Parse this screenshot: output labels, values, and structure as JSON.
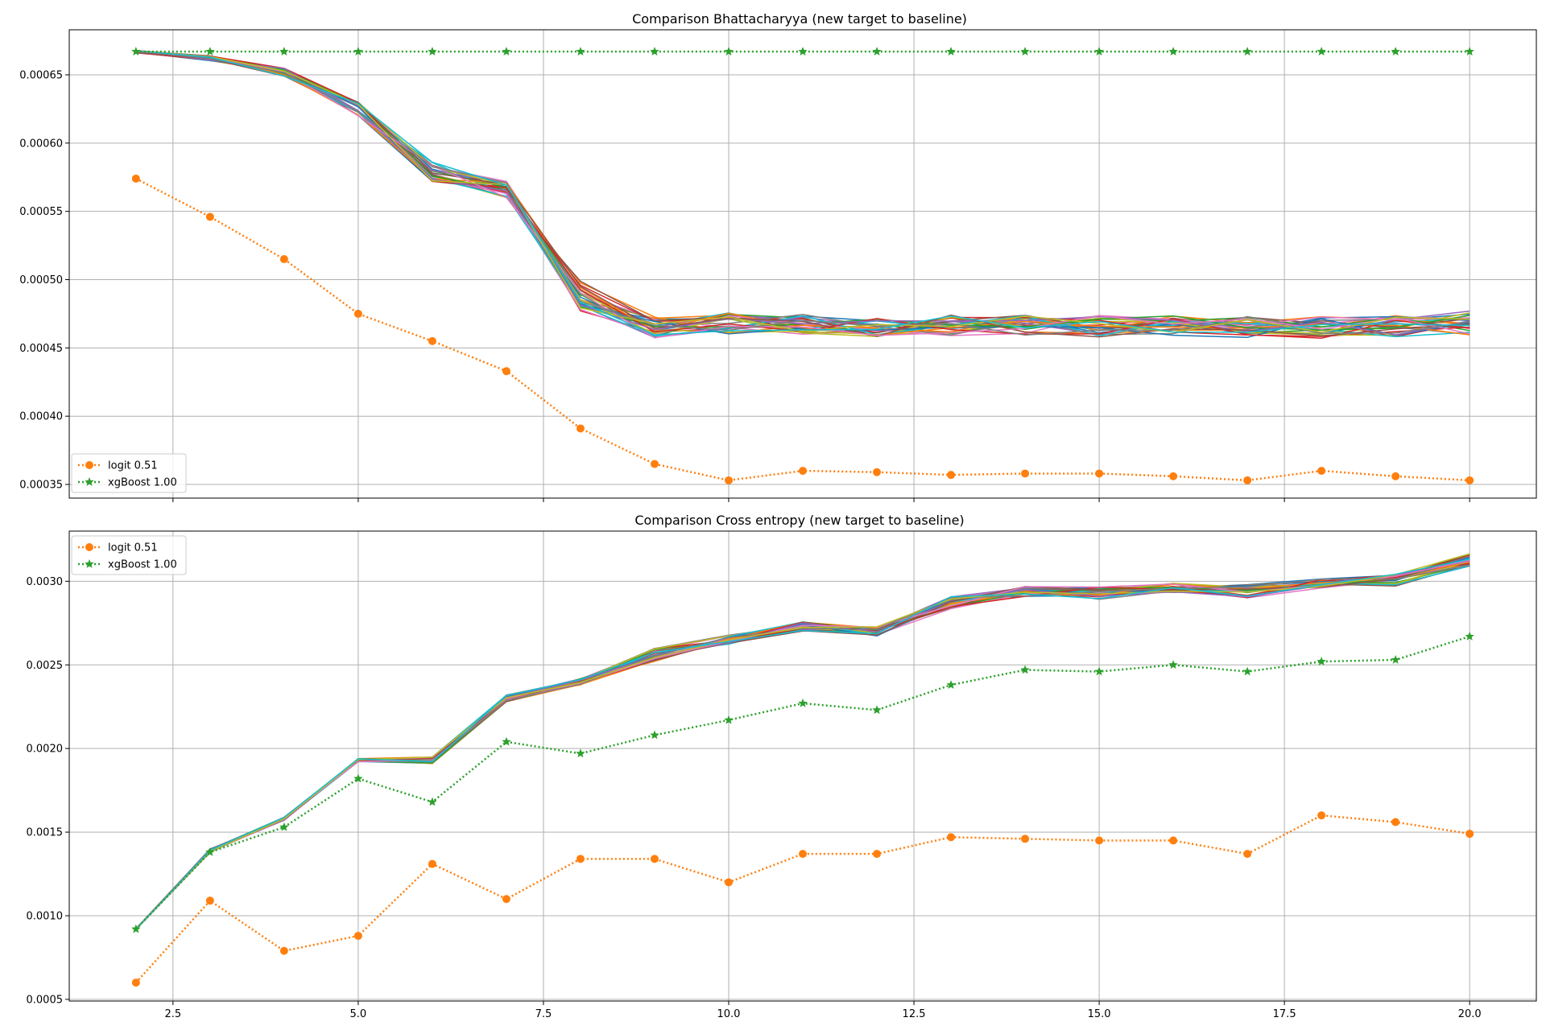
{
  "chart_data": [
    {
      "type": "line",
      "title": "Comparison Bhattacharyya (new target to baseline)",
      "xlabel": "",
      "ylabel": "",
      "xlim": [
        1.1,
        20.9
      ],
      "ylim": [
        0.00034,
        0.000683
      ],
      "grid": true,
      "legend_position": "lower-left",
      "x_ticks": [
        2.5,
        5.0,
        7.5,
        10.0,
        12.5,
        15.0,
        17.5,
        20.0
      ],
      "x_tick_labels": [
        "",
        "",
        "",
        "",
        "",
        "",
        "",
        ""
      ],
      "y_ticks": [
        0.00035,
        0.0004,
        0.00045,
        0.0005,
        0.00055,
        0.0006,
        0.00065
      ],
      "y_tick_labels": [
        "0.00035",
        "0.00040",
        "0.00045",
        "0.00050",
        "0.00055",
        "0.00060",
        "0.00065"
      ],
      "x": [
        2,
        3,
        4,
        5,
        6,
        7,
        8,
        9,
        10,
        11,
        12,
        13,
        14,
        15,
        16,
        17,
        18,
        19,
        20
      ],
      "series": [
        {
          "name": "logit 0.51",
          "color": "#ff7f0e",
          "style": "dotted",
          "marker": "circle",
          "values": [
            0.000574,
            0.000546,
            0.000515,
            0.000475,
            0.000455,
            0.000433,
            0.000391,
            0.000365,
            0.000353,
            0.00036,
            0.000359,
            0.000357,
            0.000358,
            0.000358,
            0.000356,
            0.000353,
            0.00036,
            0.000356,
            0.000353
          ]
        },
        {
          "name": "xgBoost 1.00",
          "color": "#2ca02c",
          "style": "dotted",
          "marker": "star",
          "values": [
            0.000667,
            0.000667,
            0.000667,
            0.000667,
            0.000667,
            0.000667,
            0.000667,
            0.000667,
            0.000667,
            0.000667,
            0.000667,
            0.000667,
            0.000667,
            0.000667,
            0.000667,
            0.000667,
            0.000667,
            0.000667,
            0.000667
          ]
        }
      ],
      "background_series": {
        "count": 30,
        "colors": [
          "#1f77b4",
          "#ff7f0e",
          "#2ca02c",
          "#d62728",
          "#9467bd",
          "#8c564b",
          "#e377c2",
          "#7f7f7f",
          "#bcbd22",
          "#17becf"
        ],
        "base": [
          0.000667,
          0.000662,
          0.000652,
          0.000625,
          0.000578,
          0.000566,
          0.000488,
          0.000465,
          0.000468,
          0.000468,
          0.000466,
          0.000467,
          0.000467,
          0.000466,
          0.000466,
          0.000465,
          0.000465,
          0.000466,
          0.000468
        ],
        "spread": [
          1e-06,
          2e-06,
          3e-06,
          5e-06,
          8e-06,
          6e-06,
          1.1e-05,
          8e-06,
          8e-06,
          8e-06,
          8e-06,
          8e-06,
          8e-06,
          8e-06,
          8e-06,
          8e-06,
          8e-06,
          8e-06,
          9e-06
        ]
      }
    },
    {
      "type": "line",
      "title": "Comparison Cross entropy (new target to baseline)",
      "xlabel": "",
      "ylabel": "",
      "xlim": [
        1.1,
        20.9
      ],
      "ylim": [
        0.00049,
        0.0033
      ],
      "grid": true,
      "legend_position": "top-left",
      "x_ticks": [
        2.5,
        5.0,
        7.5,
        10.0,
        12.5,
        15.0,
        17.5,
        20.0
      ],
      "x_tick_labels": [
        "2.5",
        "5.0",
        "7.5",
        "10.0",
        "12.5",
        "15.0",
        "17.5",
        "20.0"
      ],
      "y_ticks": [
        0.0005,
        0.001,
        0.0015,
        0.002,
        0.0025,
        0.003
      ],
      "y_tick_labels": [
        "0.0005",
        "0.0010",
        "0.0015",
        "0.0020",
        "0.0025",
        "0.0030"
      ],
      "x": [
        2,
        3,
        4,
        5,
        6,
        7,
        8,
        9,
        10,
        11,
        12,
        13,
        14,
        15,
        16,
        17,
        18,
        19,
        20
      ],
      "series": [
        {
          "name": "logit 0.51",
          "color": "#ff7f0e",
          "style": "dotted",
          "marker": "circle",
          "values": [
            0.0006,
            0.00109,
            0.00079,
            0.00088,
            0.00131,
            0.0011,
            0.00134,
            0.00134,
            0.0012,
            0.00137,
            0.00137,
            0.00147,
            0.00146,
            0.00145,
            0.00145,
            0.00137,
            0.0016,
            0.00156,
            0.00149
          ]
        },
        {
          "name": "xgBoost 1.00",
          "color": "#2ca02c",
          "style": "dotted",
          "marker": "star",
          "values": [
            0.00092,
            0.00138,
            0.00153,
            0.00182,
            0.00168,
            0.00204,
            0.00197,
            0.00208,
            0.00217,
            0.00227,
            0.00223,
            0.00238,
            0.00247,
            0.00246,
            0.0025,
            0.00246,
            0.00252,
            0.00253,
            0.00267
          ]
        }
      ],
      "background_series": {
        "count": 30,
        "colors": [
          "#1f77b4",
          "#ff7f0e",
          "#2ca02c",
          "#d62728",
          "#9467bd",
          "#8c564b",
          "#e377c2",
          "#7f7f7f",
          "#bcbd22",
          "#17becf"
        ],
        "base": [
          0.00092,
          0.00139,
          0.00158,
          0.00193,
          0.00193,
          0.0023,
          0.0024,
          0.00256,
          0.00265,
          0.00273,
          0.0027,
          0.00287,
          0.00294,
          0.00293,
          0.00296,
          0.00294,
          0.00299,
          0.00301,
          0.00313
        ],
        "spread": [
          3e-06,
          1e-05,
          1e-05,
          1e-05,
          2e-05,
          2e-05,
          2e-05,
          4e-05,
          3e-05,
          3e-05,
          3e-05,
          4e-05,
          3e-05,
          4e-05,
          3e-05,
          4e-05,
          3e-05,
          4e-05,
          4e-05
        ]
      }
    }
  ]
}
